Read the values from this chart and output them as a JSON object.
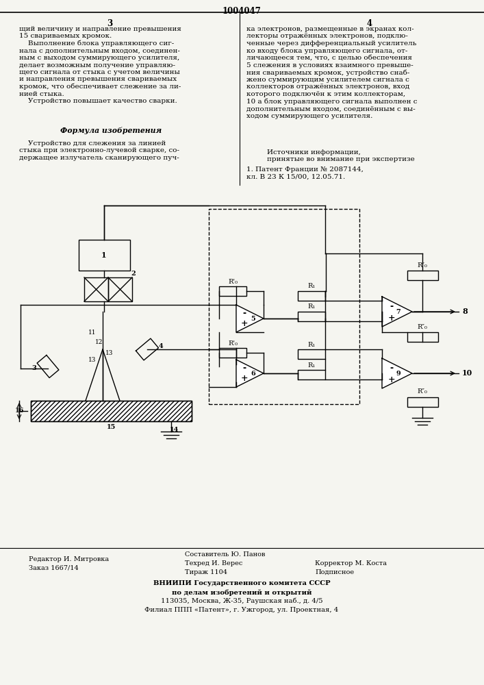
{
  "bg_color": "#f5f5f0",
  "page_number_top": "1004047",
  "col_left_num": "3",
  "col_right_num": "4",
  "text_left_col1": "щий величину и направление превышения\n15 свариваемых кромок.\n    Выполнение блока управляющего сиг-\nнала с дополнительным входом, соединен-\nным с выходом суммирующего усилителя,\nделает возможным получение управляю-\nщего сигнала от стыка с учетом величины\nи направления превышения свариваемых\nкромок, что обеспечивает слежение за ли-\nнией стыка.\n    Устройство повышает качество сварки.",
  "text_formula": "Формула изобретения",
  "text_formula_body": "    Устройство для слежения за линией\nстыка при электронно-лучевой сварке, со-\nдержащее излучатель сканирующего пуч-",
  "text_right_col1": "ка электронов, размещенные в экранах кол-\nлекторы отражённых электронов, подклю-\nченные через дифференциальный усилитель\nко входу блока управляющего сигнала, от-\nличающееся тем, что, с целью обеспечения\n5 слежения в условиях взаимного превыше-\nния свариваемых кромок, устройство снаб-\nжено суммирующим усилителем сигнала с\nколлекторов отражённых электронов, вход\nкоторого подключён к этим коллекторам,\n10 а блок управляющего сигнала выполнен с\nдополнительным входом, соединённым с вы-\nходом суммирующего усилителя.",
  "text_sources_title": "Источники информации,\nпринятые во внимание при экспертизе",
  "text_sources_body": "1. Патент Франции № 2087144,\nкл. В 23 К 15/00, 12.05.71.",
  "footer_left1": "Редактор И. Митровка",
  "footer_left2": "Заказ 1667/14",
  "footer_center1": "Составитель Ю. Панов",
  "footer_center2": "Техред И. Верес",
  "footer_center3": "Тираж 1104",
  "footer_right1": "Корректор М. Коста",
  "footer_right2": "Подписное",
  "footer_vniiipi1": "ВНИИПИ Государственного комитета СССР",
  "footer_vniiipi2": "по делам изобретений и открытий",
  "footer_vniiipi3": "113035, Москва, Ж-35, Раушская наб., д. 4/5",
  "footer_vniiipi4": "Филиал ППП «Патент», г. Ужгород, ул. Проектная, 4"
}
